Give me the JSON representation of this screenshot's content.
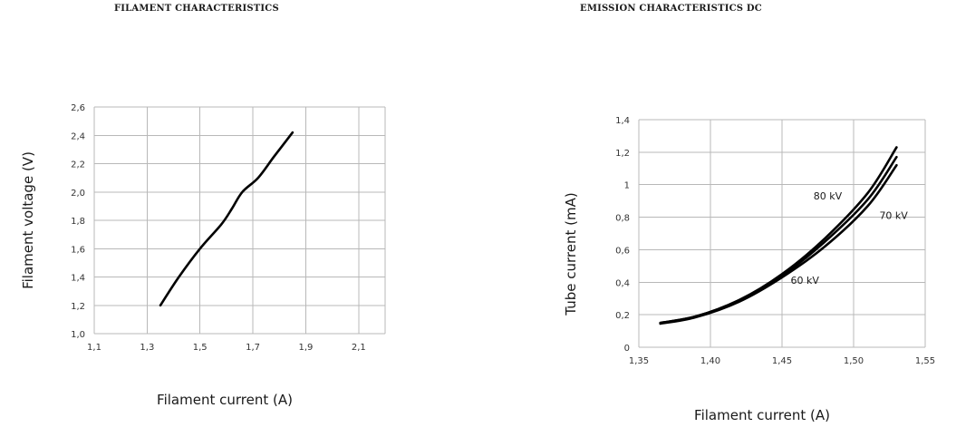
{
  "chart_data": [
    {
      "type": "line",
      "title": "FILAMENT CHARACTERISTICS",
      "xlabel": "Filament current (A)",
      "ylabel": "Filament voltage (V)",
      "xlim": [
        1.1,
        2.2
      ],
      "ylim": [
        1.0,
        2.6
      ],
      "x_ticks": [
        1.1,
        1.3,
        1.5,
        1.7,
        1.9,
        2.1
      ],
      "x_tick_labels": [
        "1,1",
        "1,3",
        "1,5",
        "1,7",
        "1,9",
        "2,1"
      ],
      "x_grid": [
        1.1,
        1.3,
        1.5,
        1.7,
        1.9,
        2.1,
        2.2
      ],
      "y_ticks": [
        1.0,
        1.2,
        1.4,
        1.6,
        1.8,
        2.0,
        2.2,
        2.4,
        2.6
      ],
      "y_tick_labels": [
        "1,0",
        "1,2",
        "1,4",
        "1,6",
        "1,8",
        "2,0",
        "2,2",
        "2,4",
        "2,6"
      ],
      "grid": true,
      "series": [
        {
          "x": [
            1.35,
            1.42,
            1.5,
            1.58,
            1.62,
            1.66,
            1.72,
            1.78,
            1.85
          ],
          "y": [
            1.2,
            1.4,
            1.6,
            1.77,
            1.88,
            2.0,
            2.1,
            2.25,
            2.42
          ]
        }
      ]
    },
    {
      "type": "line",
      "title": "EMISSION CHARACTERISTICS DC",
      "xlabel": "Filament current (A)",
      "ylabel": "Tube current (mA)",
      "xlim": [
        1.35,
        1.55
      ],
      "ylim": [
        0,
        1.4
      ],
      "x_ticks": [
        1.35,
        1.4,
        1.45,
        1.5,
        1.55
      ],
      "x_tick_labels": [
        "1,35",
        "1,40",
        "1,45",
        "1,50",
        "1,55"
      ],
      "y_ticks": [
        0,
        0.2,
        0.4,
        0.6,
        0.8,
        1.0,
        1.2,
        1.4
      ],
      "y_tick_labels": [
        "0",
        "0,2",
        "0,4",
        "0,6",
        "0,8",
        "1",
        "1,2",
        "1,4"
      ],
      "grid": true,
      "series": [
        {
          "name": "80 kV",
          "x": [
            1.365,
            1.39,
            1.42,
            1.45,
            1.48,
            1.51,
            1.53
          ],
          "y": [
            0.15,
            0.19,
            0.29,
            0.45,
            0.67,
            0.95,
            1.23
          ]
        },
        {
          "name": "70 kV",
          "x": [
            1.365,
            1.39,
            1.42,
            1.45,
            1.48,
            1.51,
            1.53
          ],
          "y": [
            0.15,
            0.19,
            0.29,
            0.44,
            0.65,
            0.91,
            1.17
          ]
        },
        {
          "name": "60 kV",
          "x": [
            1.365,
            1.39,
            1.42,
            1.45,
            1.48,
            1.51,
            1.53
          ],
          "y": [
            0.145,
            0.185,
            0.28,
            0.43,
            0.62,
            0.87,
            1.12
          ]
        }
      ],
      "annotations": [
        {
          "text": "80 kV",
          "x": 1.472,
          "y": 0.91
        },
        {
          "text": "70 kV",
          "x": 1.518,
          "y": 0.79
        },
        {
          "text": "60 kV",
          "x": 1.456,
          "y": 0.39
        }
      ]
    }
  ]
}
